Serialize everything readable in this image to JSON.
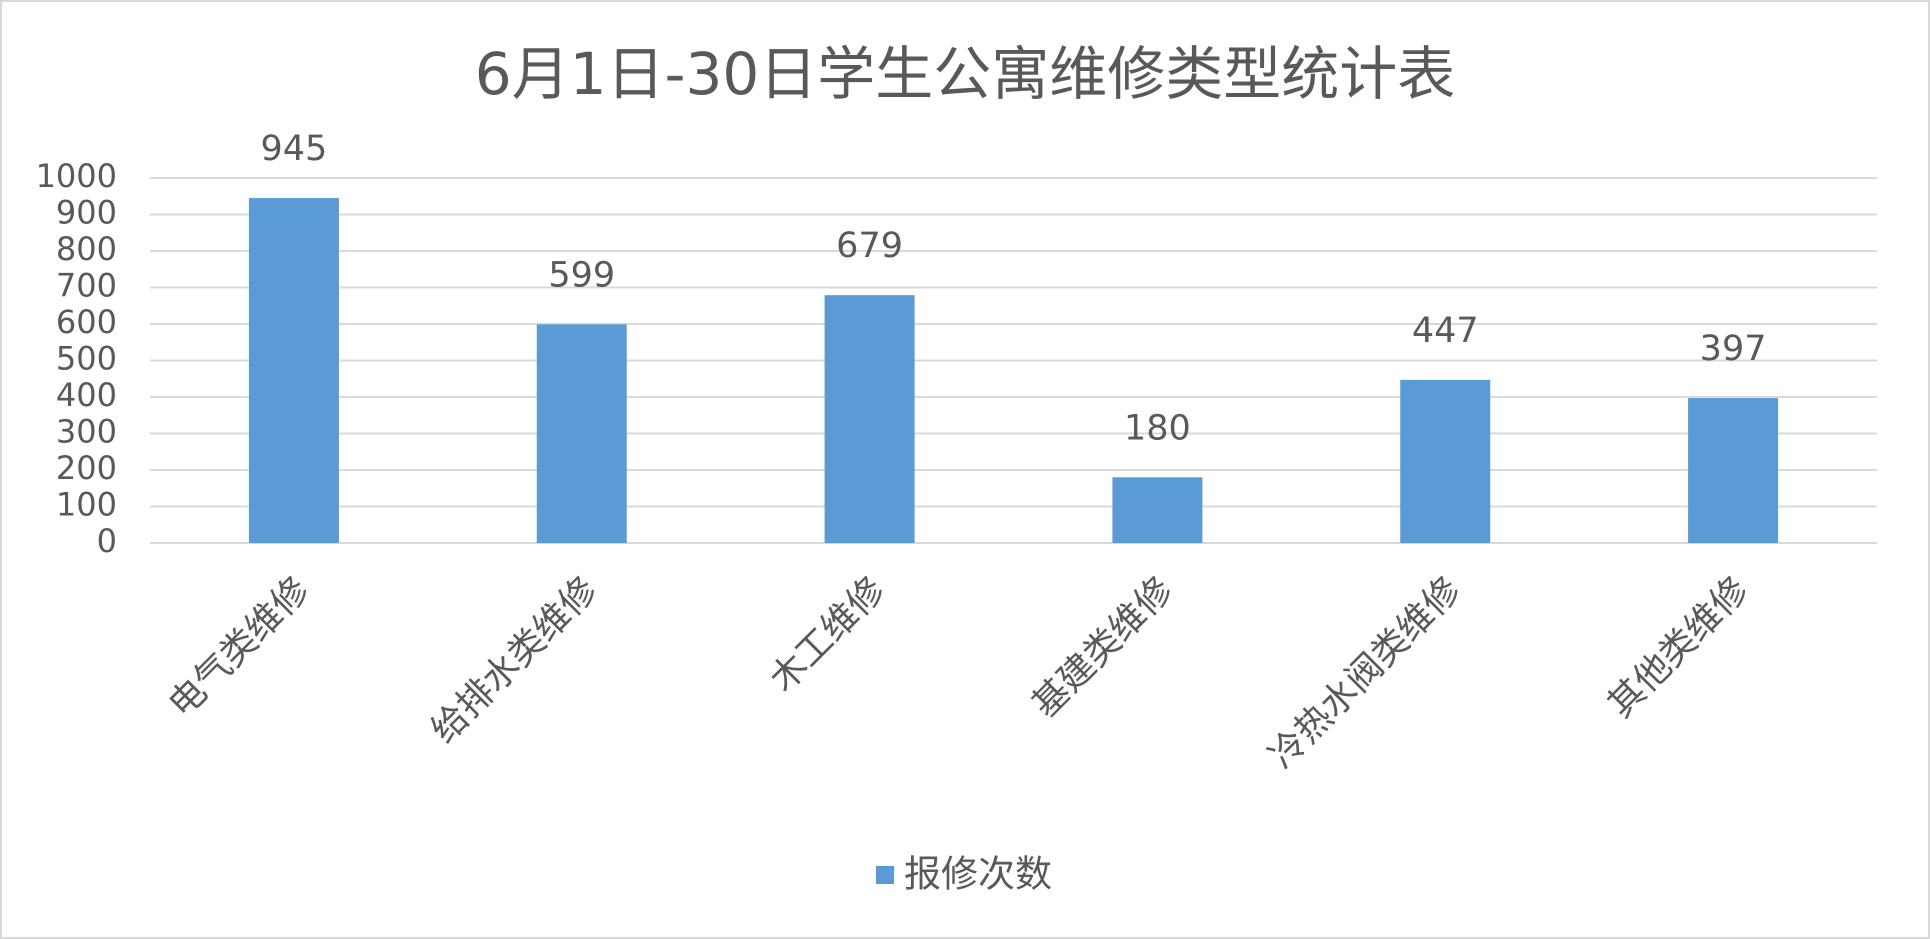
{
  "chart_data": {
    "type": "bar",
    "title": "6月1日-30日学生公寓维修类型统计表",
    "categories": [
      "电气类维修",
      "给排水类维修",
      "木工维修",
      "基建类维修",
      "冷热水阀类维修",
      "其他类维修"
    ],
    "series": [
      {
        "name": "报修次数",
        "color": "#5b9bd5",
        "values": [
          945,
          599,
          679,
          180,
          447,
          397
        ]
      }
    ],
    "ylim": [
      0,
      1000
    ],
    "yticks": [
      0,
      100,
      200,
      300,
      400,
      500,
      600,
      700,
      800,
      900,
      1000
    ],
    "grid": true,
    "legend": "bottom"
  }
}
